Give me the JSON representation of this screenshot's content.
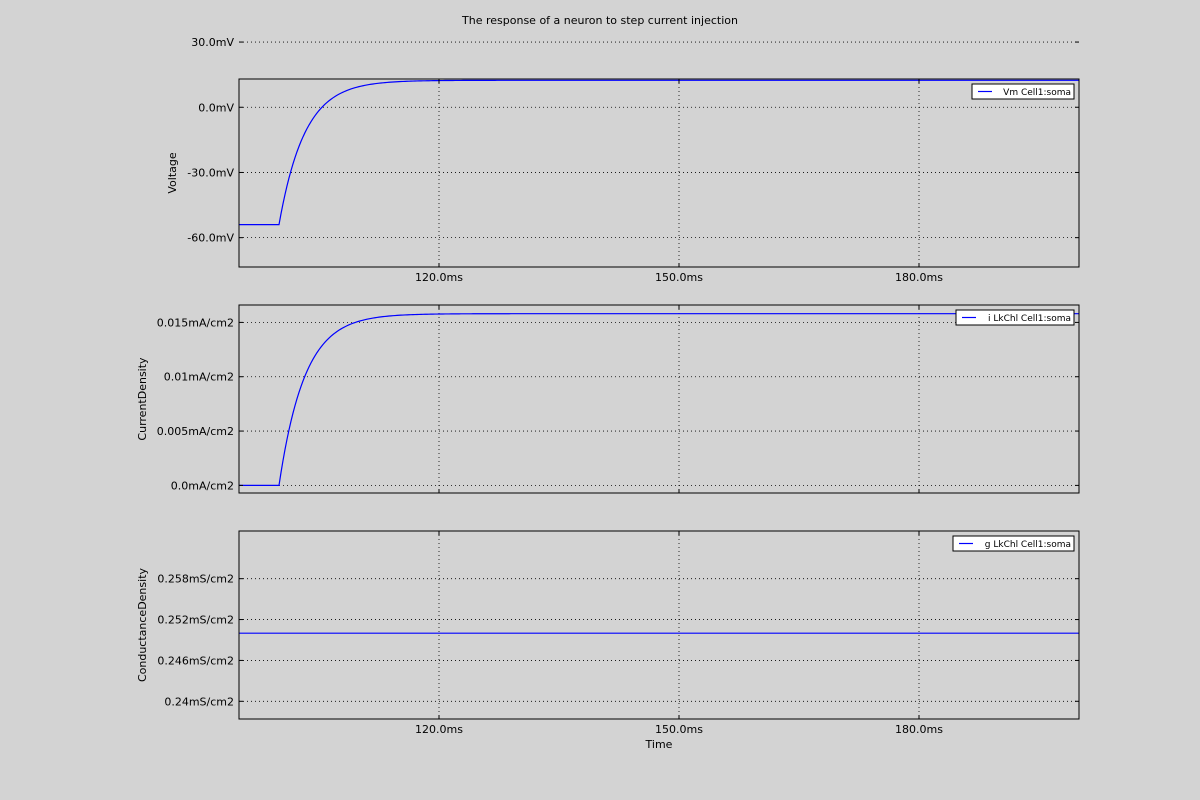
{
  "figure": {
    "title": "The response of a neuron to step current injection",
    "xlabel": "Time"
  },
  "chart_data": [
    {
      "type": "line",
      "ylabel": "Voltage",
      "grid": true,
      "legend_placement": "top-right",
      "xlim": [
        95,
        200
      ],
      "ylim": [
        -73.5,
        13
      ],
      "x_ticks": [
        120,
        150,
        180
      ],
      "x_tick_labels": [
        "120.0ms",
        "150.0ms",
        "180.0ms"
      ],
      "y_ticks": [
        -60,
        -30,
        0,
        30
      ],
      "y_tick_labels": [
        "-60.0mV",
        "-30.0mV",
        "0.0mV",
        "30.0mV"
      ],
      "series": [
        {
          "name": "Vm Cell1:soma",
          "color": "#0000ff",
          "baseline": -54,
          "final": 12.4,
          "step_start": 100,
          "tau": 3.2,
          "x_end": 200
        }
      ]
    },
    {
      "type": "line",
      "ylabel": "CurrentDensity",
      "grid": true,
      "legend_placement": "top-right",
      "xlim": [
        95,
        200
      ],
      "ylim": [
        -0.0007,
        0.0166
      ],
      "x_ticks": [
        120,
        150,
        180
      ],
      "x_tick_labels": [
        "",
        "",
        ""
      ],
      "y_ticks": [
        0,
        0.005,
        0.01,
        0.015
      ],
      "y_tick_labels": [
        "0.0mA/cm2",
        "0.005mA/cm2",
        "0.01mA/cm2",
        "0.015mA/cm2"
      ],
      "series": [
        {
          "name": "i LkChl Cell1:soma",
          "color": "#0000ff",
          "baseline": 0,
          "final": 0.0158,
          "step_start": 100,
          "tau": 3.2,
          "x_end": 200
        }
      ]
    },
    {
      "type": "line",
      "ylabel": "ConductanceDensity",
      "grid": true,
      "legend_placement": "top-right",
      "xlim": [
        95,
        200
      ],
      "ylim": [
        0.2374,
        0.265
      ],
      "x_ticks": [
        120,
        150,
        180
      ],
      "x_tick_labels": [
        "120.0ms",
        "150.0ms",
        "180.0ms"
      ],
      "y_ticks": [
        0.24,
        0.246,
        0.252,
        0.258
      ],
      "y_tick_labels": [
        "0.24mS/cm2",
        "0.246mS/cm2",
        "0.252mS/cm2",
        "0.258mS/cm2"
      ],
      "series": [
        {
          "name": "g LkChl Cell1:soma",
          "color": "#0000ff",
          "x": [
            95,
            200
          ],
          "y": [
            0.25,
            0.25
          ]
        }
      ]
    }
  ]
}
